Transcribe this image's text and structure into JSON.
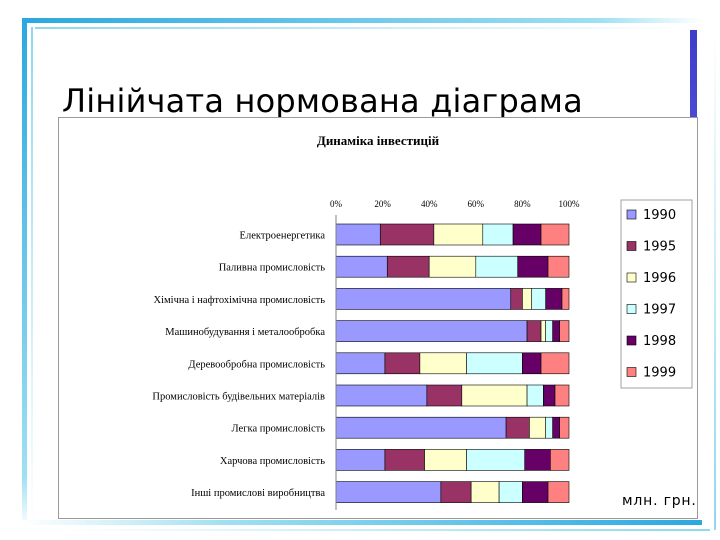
{
  "slide": {
    "title": "Лінійчата нормована діаграма"
  },
  "colors": {
    "accent_bar": "#2aa8e0",
    "accent_bar_light": "#8fd8ee",
    "side_bar": "#3d3dcc"
  },
  "chart_data": {
    "type": "bar",
    "orientation": "horizontal",
    "stacked": "percent",
    "title": "Динаміка інвестицій",
    "unit_label": "млн. грн.",
    "x_ticks": [
      "0%",
      "20%",
      "40%",
      "60%",
      "80%",
      "100%"
    ],
    "xlim": [
      0,
      100
    ],
    "legend_position": "right",
    "grid": false,
    "categories": [
      "Електроенергетика",
      "Паливна промисловість",
      "Хімічна і нафтохімічна промисловість",
      "Машинобудування і металообробка",
      "Деревообробна промисловість",
      "Промисловість будівельних матеріалів",
      "Легка промисловість",
      "Харчова промисловість",
      "Інші промислові виробництва"
    ],
    "series": [
      {
        "name": "1990",
        "color": "#9999ff",
        "values": [
          19,
          22,
          75,
          82,
          21,
          39,
          73,
          21,
          45
        ]
      },
      {
        "name": "1995",
        "color": "#993366",
        "values": [
          23,
          18,
          5,
          6,
          15,
          15,
          10,
          17,
          13
        ]
      },
      {
        "name": "1996",
        "color": "#ffffcc",
        "values": [
          21,
          20,
          4,
          2,
          20,
          28,
          7,
          18,
          12
        ]
      },
      {
        "name": "1997",
        "color": "#ccffff",
        "values": [
          13,
          18,
          6,
          3,
          24,
          7,
          3,
          25,
          10
        ]
      },
      {
        "name": "1998",
        "color": "#660066",
        "values": [
          12,
          13,
          7,
          3,
          8,
          5,
          3,
          11,
          11
        ]
      },
      {
        "name": "1999",
        "color": "#ff8080",
        "values": [
          12,
          9,
          3,
          4,
          12,
          6,
          4,
          8,
          9
        ]
      }
    ]
  }
}
